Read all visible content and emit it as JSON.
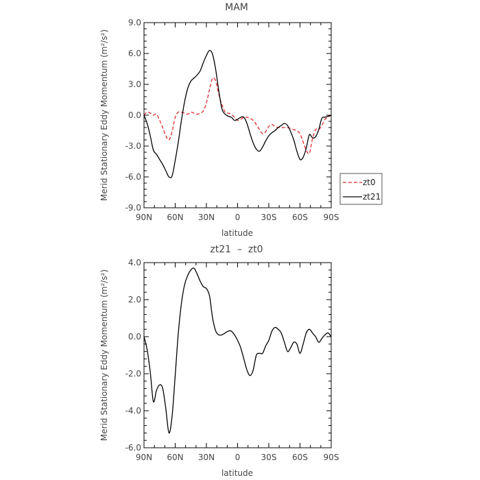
{
  "chart_data": [
    {
      "type": "line",
      "title": "MAM",
      "xlabel": "latitude",
      "ylabel": "Merid Stationary Eddy Momentum (m²/s²)",
      "ylim": [
        -9,
        9
      ],
      "yticks": [
        -9,
        -6,
        -3,
        0,
        3,
        6,
        9
      ],
      "ytick_labels": [
        "-9.0",
        "-6.0",
        "-3.0",
        "0.0",
        "3.0",
        "6.0",
        "9.0"
      ],
      "xlim": [
        90,
        -90
      ],
      "xticks": [
        90,
        60,
        30,
        0,
        -30,
        -60,
        -90
      ],
      "xtick_labels": [
        "90N",
        "60N",
        "30N",
        "0",
        "30S",
        "60S",
        "90S"
      ],
      "legend": "right",
      "series": [
        {
          "name": "zt0",
          "color": "#e8262b",
          "dash": "dashed",
          "x": [
            90,
            87,
            84,
            81,
            78,
            75,
            72,
            69,
            66,
            63,
            60,
            57,
            54,
            51,
            48,
            45,
            42,
            39,
            36,
            33,
            30,
            27,
            24,
            21,
            18,
            15,
            12,
            9,
            6,
            3,
            0,
            -3,
            -6,
            -9,
            -12,
            -15,
            -18,
            -21,
            -24,
            -27,
            -30,
            -33,
            -36,
            -39,
            -42,
            -45,
            -48,
            -51,
            -54,
            -57,
            -60,
            -63,
            -66,
            -69,
            -72,
            -75,
            -78,
            -81,
            -84,
            -87,
            -90
          ],
          "y": [
            0.0,
            0.3,
            0.2,
            0.0,
            0.1,
            -0.5,
            -1.2,
            -2.0,
            -2.4,
            -1.6,
            -0.2,
            0.3,
            0.3,
            0.2,
            0.1,
            0.3,
            0.2,
            0.1,
            0.2,
            0.4,
            1.2,
            2.5,
            3.6,
            3.3,
            2.0,
            1.0,
            0.3,
            0.2,
            0.1,
            -0.2,
            -0.5,
            -0.4,
            -0.2,
            -0.2,
            -0.3,
            -0.5,
            -0.9,
            -1.4,
            -1.8,
            -1.6,
            -1.1,
            -0.9,
            -1.1,
            -1.2,
            -1.2,
            -1.2,
            -1.2,
            -1.3,
            -1.4,
            -1.5,
            -1.8,
            -2.6,
            -3.4,
            -3.7,
            -2.3,
            -1.4,
            -1.4,
            -1.0,
            -0.4,
            -0.2,
            0.0
          ]
        },
        {
          "name": "zt21",
          "color": "#000000",
          "dash": "solid",
          "x": [
            90,
            87,
            84,
            81,
            78,
            75,
            72,
            69,
            66,
            63,
            60,
            57,
            54,
            51,
            48,
            45,
            42,
            39,
            36,
            33,
            30,
            27,
            24,
            21,
            18,
            15,
            12,
            9,
            6,
            3,
            0,
            -3,
            -6,
            -9,
            -12,
            -15,
            -18,
            -21,
            -24,
            -27,
            -30,
            -33,
            -36,
            -39,
            -42,
            -45,
            -48,
            -51,
            -54,
            -57,
            -60,
            -63,
            -66,
            -69,
            -72,
            -75,
            -78,
            -81,
            -84,
            -87,
            -90
          ],
          "y": [
            0.0,
            -0.8,
            -2.0,
            -3.4,
            -3.8,
            -4.3,
            -4.8,
            -5.4,
            -6.0,
            -5.9,
            -4.4,
            -2.6,
            -0.5,
            1.3,
            2.6,
            3.3,
            3.6,
            3.9,
            4.3,
            5.1,
            5.8,
            6.3,
            5.9,
            4.4,
            2.3,
            0.6,
            0.1,
            -0.1,
            -0.2,
            -0.5,
            -0.4,
            -0.2,
            -0.2,
            -0.8,
            -1.8,
            -2.7,
            -3.3,
            -3.5,
            -3.1,
            -2.5,
            -2.0,
            -1.7,
            -1.5,
            -1.2,
            -1.0,
            -0.8,
            -1.0,
            -1.6,
            -2.4,
            -3.5,
            -4.3,
            -4.1,
            -3.2,
            -1.9,
            -2.2,
            -2.1,
            -1.4,
            -0.3,
            -0.2,
            -0.1,
            0.0
          ]
        }
      ]
    },
    {
      "type": "line",
      "title": "zt21  –  zt0",
      "xlabel": "latitude",
      "ylabel": "Merid Stationary Eddy Momentum (m²/s²)",
      "ylim": [
        -6,
        4
      ],
      "yticks": [
        -6,
        -4,
        -2,
        0,
        2,
        4
      ],
      "ytick_labels": [
        "-6.0",
        "-4.0",
        "-2.0",
        "0.0",
        "2.0",
        "4.0"
      ],
      "xlim": [
        90,
        -90
      ],
      "xticks": [
        90,
        60,
        30,
        0,
        -30,
        -60,
        -90
      ],
      "xtick_labels": [
        "90N",
        "60N",
        "30N",
        "0",
        "30S",
        "60S",
        "90S"
      ],
      "series": [
        {
          "color": "#000000",
          "dash": "solid",
          "x": [
            90,
            87,
            84,
            81,
            78,
            75,
            72,
            69,
            66,
            63,
            60,
            57,
            54,
            51,
            48,
            45,
            42,
            39,
            36,
            33,
            30,
            27,
            24,
            21,
            18,
            15,
            12,
            9,
            6,
            3,
            0,
            -3,
            -6,
            -9,
            -12,
            -15,
            -18,
            -21,
            -24,
            -27,
            -30,
            -33,
            -36,
            -39,
            -42,
            -45,
            -48,
            -51,
            -54,
            -57,
            -60,
            -63,
            -66,
            -69,
            -72,
            -75,
            -78,
            -81,
            -84,
            -87,
            -90
          ],
          "y": [
            0.0,
            -0.7,
            -1.9,
            -3.5,
            -2.9,
            -2.6,
            -2.8,
            -3.9,
            -5.2,
            -4.3,
            -2.1,
            0.2,
            1.8,
            2.8,
            3.3,
            3.6,
            3.7,
            3.4,
            3.0,
            2.7,
            2.6,
            2.2,
            1.0,
            0.3,
            0.1,
            0.1,
            0.2,
            0.3,
            0.3,
            0.1,
            -0.2,
            -0.6,
            -1.2,
            -1.8,
            -2.1,
            -1.8,
            -1.0,
            -0.9,
            -0.9,
            -0.5,
            -0.2,
            0.3,
            0.5,
            0.4,
            0.2,
            -0.3,
            -0.8,
            -0.6,
            -0.3,
            -0.4,
            -0.9,
            -0.4,
            0.2,
            0.4,
            0.2,
            0.0,
            -0.3,
            -0.1,
            0.1,
            0.2,
            0.0
          ]
        }
      ]
    }
  ]
}
